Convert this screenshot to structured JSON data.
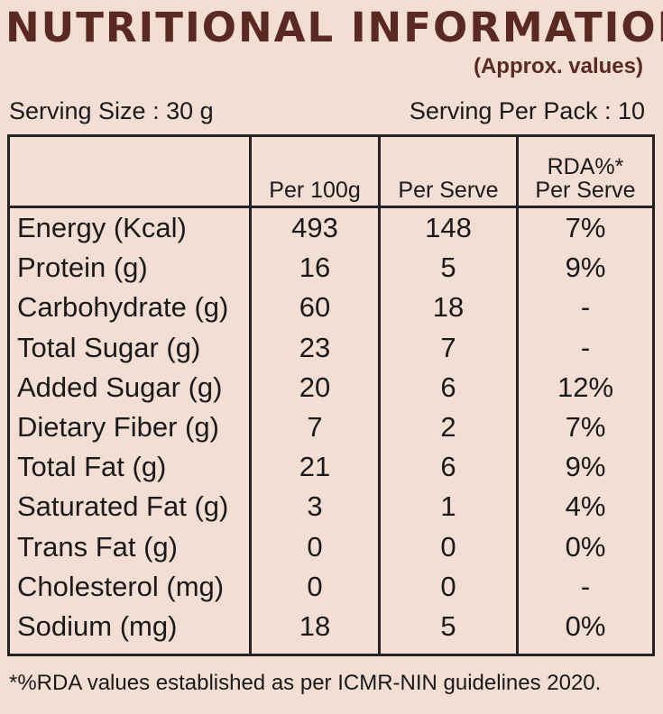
{
  "title": "NUTRITIONAL INFORMATION",
  "subtitle": "(Approx. values)",
  "serving_size": "Serving Size : 30 g",
  "serving_per_pack": "Serving Per Pack : 10",
  "columns": [
    "",
    "Per 100g",
    "Per Serve",
    "RDA%* Per Serve"
  ],
  "rows": [
    {
      "name": "Energy (Kcal)",
      "per100": "493",
      "perServe": "148",
      "rda": "7%"
    },
    {
      "name": "Protein (g)",
      "per100": "16",
      "perServe": "5",
      "rda": "9%"
    },
    {
      "name": "Carbohydrate (g)",
      "per100": "60",
      "perServe": "18",
      "rda": "-"
    },
    {
      "name": "Total Sugar (g)",
      "per100": "23",
      "perServe": "7",
      "rda": "-"
    },
    {
      "name": "Added Sugar (g)",
      "per100": "20",
      "perServe": "6",
      "rda": "12%"
    },
    {
      "name": "Dietary Fiber (g)",
      "per100": "7",
      "perServe": "2",
      "rda": "7%"
    },
    {
      "name": "Total Fat (g)",
      "per100": "21",
      "perServe": "6",
      "rda": "9%"
    },
    {
      "name": "Saturated Fat (g)",
      "per100": "3",
      "perServe": "1",
      "rda": "4%"
    },
    {
      "name": "Trans Fat (g)",
      "per100": "0",
      "perServe": "0",
      "rda": "0%"
    },
    {
      "name": "Cholesterol (mg)",
      "per100": "0",
      "perServe": "0",
      "rda": "-"
    },
    {
      "name": "Sodium (mg)",
      "per100": "18",
      "perServe": "5",
      "rda": "0%"
    }
  ],
  "footnote": "*%RDA values established as per ICMR-NIN guidelines 2020.",
  "colors": {
    "background": "#f2ded3",
    "title": "#5a2a22",
    "border": "#222222"
  }
}
